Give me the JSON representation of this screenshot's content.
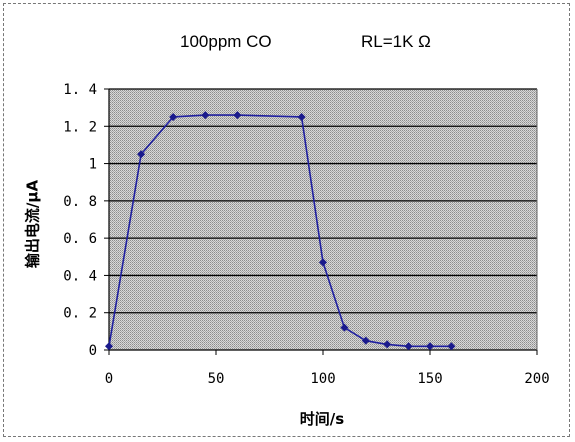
{
  "chart_data": {
    "type": "line",
    "title_left": "100ppm CO",
    "title_right": "RL=1K Ω",
    "xlabel": "时间/s",
    "ylabel": "输出电流/μA",
    "xlim": [
      0,
      200
    ],
    "ylim": [
      0,
      1.4
    ],
    "x_ticks": [
      "0",
      "50",
      "100",
      "150",
      "200"
    ],
    "y_ticks": [
      "0",
      "0. 2",
      "0. 4",
      "0. 6",
      "0. 8",
      "1",
      "1. 2",
      "1. 4"
    ],
    "x_tick_values": [
      0,
      50,
      100,
      150,
      200
    ],
    "y_tick_values": [
      0,
      0.2,
      0.4,
      0.6,
      0.8,
      1.0,
      1.2,
      1.4
    ],
    "grid": true,
    "series": [
      {
        "x": [
          0,
          15,
          30,
          45,
          60,
          90,
          100,
          110,
          120,
          130,
          140,
          150,
          160
        ],
        "y": [
          0.02,
          1.05,
          1.25,
          1.26,
          1.26,
          1.25,
          0.47,
          0.12,
          0.05,
          0.03,
          0.02,
          0.02,
          0.02
        ]
      }
    ],
    "colors": {
      "line": "#1f1fa0",
      "marker": "#1a1a8c",
      "plot_background": "#c0c0c0",
      "gridline": "#000000"
    }
  }
}
